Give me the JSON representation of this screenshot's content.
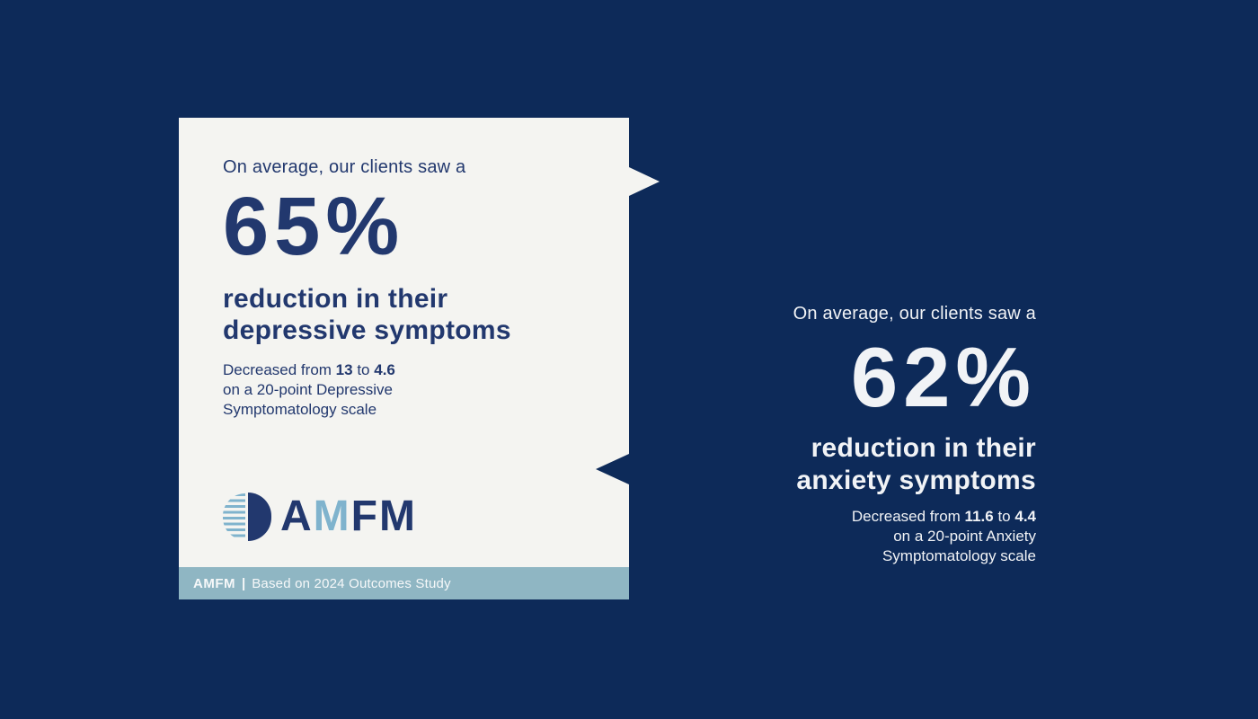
{
  "page": {
    "background_color": "#0d2a59",
    "card_background": "#f4f4f1",
    "navy_text_color": "#22386e",
    "footer_bar_color": "#8fb6c3",
    "logo_accent_color": "#7fb3cd"
  },
  "left_card": {
    "intro": "On average, our clients saw a",
    "stat": "65%",
    "headline": [
      "reduction in their",
      "depressive symptoms"
    ],
    "detail": {
      "prefix": "Decreased from",
      "from": "13",
      "connector": "to",
      "to": "4.6",
      "line2": "on a 20-point Depressive",
      "line3": "Symptomatology scale"
    },
    "logo": {
      "letters": [
        "A",
        "M",
        "F",
        "M"
      ]
    },
    "footer": {
      "brand": "AMFM",
      "separator": "|",
      "text": "Based on 2024 Outcomes Study"
    }
  },
  "right_block": {
    "intro": "On average, our clients saw a",
    "stat": "62%",
    "headline": [
      "reduction in their",
      "anxiety symptoms"
    ],
    "detail": {
      "prefix": "Decreased from",
      "from": "11.6",
      "connector": "to",
      "to": "4.4",
      "line2": "on a 20-point Anxiety",
      "line3": "Symptomatology scale"
    }
  }
}
